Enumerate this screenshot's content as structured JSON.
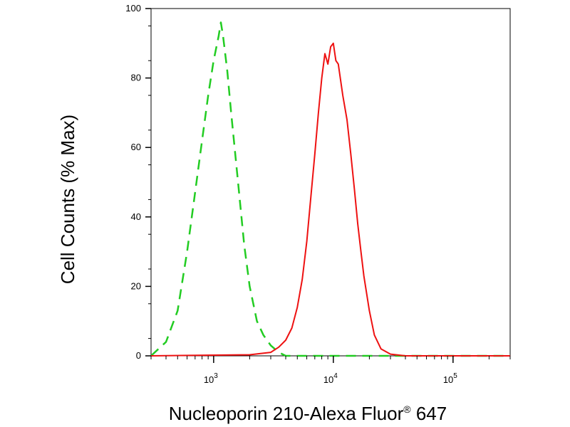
{
  "chart_data": {
    "type": "line",
    "title": "",
    "xlabel": "Nucleoporin 210-Alexa Fluor",
    "xlabel_superscript": "®",
    "xlabel_suffix": " 647",
    "ylabel": "Cell Counts (% Max)",
    "xscale": "log",
    "xlim": [
      300,
      300000
    ],
    "ylim": [
      0,
      100
    ],
    "x_ticks": [
      {
        "value": 1000,
        "base": "10",
        "exp": "3"
      },
      {
        "value": 10000,
        "base": "10",
        "exp": "4"
      },
      {
        "value": 100000,
        "base": "10",
        "exp": "5"
      }
    ],
    "y_ticks": [
      {
        "value": 0,
        "label": "0"
      },
      {
        "value": 20,
        "label": "20"
      },
      {
        "value": 40,
        "label": "40"
      },
      {
        "value": 60,
        "label": "60"
      },
      {
        "value": 80,
        "label": "80"
      },
      {
        "value": 100,
        "label": "100"
      }
    ],
    "grid": false,
    "legend": "none",
    "series": [
      {
        "color": "#22cc22",
        "style": "dashed",
        "points": [
          [
            300,
            0
          ],
          [
            400,
            4
          ],
          [
            500,
            13
          ],
          [
            600,
            30
          ],
          [
            700,
            47
          ],
          [
            800,
            62
          ],
          [
            900,
            75
          ],
          [
            1000,
            85
          ],
          [
            1100,
            92
          ],
          [
            1150,
            96
          ],
          [
            1200,
            92
          ],
          [
            1300,
            82
          ],
          [
            1400,
            70
          ],
          [
            1600,
            50
          ],
          [
            1800,
            32
          ],
          [
            2000,
            20
          ],
          [
            2300,
            10
          ],
          [
            2600,
            6
          ],
          [
            3000,
            3
          ],
          [
            3500,
            1
          ],
          [
            4000,
            0
          ],
          [
            300000,
            0
          ]
        ]
      },
      {
        "color": "#ee1111",
        "style": "solid",
        "points": [
          [
            300,
            0
          ],
          [
            2000,
            0.3
          ],
          [
            3000,
            1
          ],
          [
            3500,
            2.5
          ],
          [
            4000,
            4.5
          ],
          [
            4500,
            8
          ],
          [
            5000,
            14
          ],
          [
            5500,
            22
          ],
          [
            6000,
            33
          ],
          [
            6500,
            46
          ],
          [
            7000,
            58
          ],
          [
            7500,
            70
          ],
          [
            8000,
            80
          ],
          [
            8500,
            87
          ],
          [
            9000,
            84
          ],
          [
            9500,
            89
          ],
          [
            10000,
            90
          ],
          [
            10500,
            85
          ],
          [
            11000,
            84
          ],
          [
            12000,
            75
          ],
          [
            13000,
            68
          ],
          [
            14000,
            58
          ],
          [
            15000,
            48
          ],
          [
            16000,
            38
          ],
          [
            17000,
            30
          ],
          [
            18000,
            23
          ],
          [
            20000,
            13
          ],
          [
            22000,
            6
          ],
          [
            25000,
            2
          ],
          [
            30000,
            0.5
          ],
          [
            40000,
            0
          ],
          [
            300000,
            0
          ]
        ]
      }
    ]
  }
}
